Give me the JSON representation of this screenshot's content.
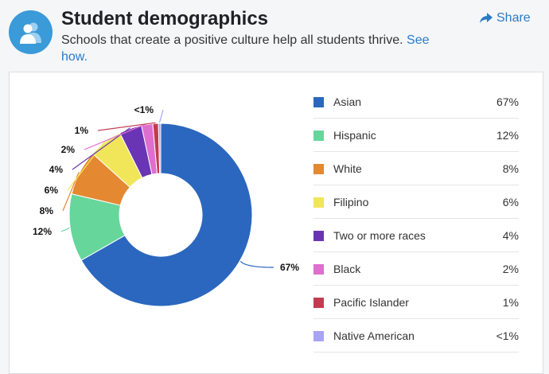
{
  "header": {
    "title": "Student demographics",
    "subtitle": "Schools that create a positive culture help all students thrive.",
    "link": "See how.",
    "share_label": "Share",
    "icon": "people-icon"
  },
  "chart_data": {
    "type": "pie",
    "donut": true,
    "legend_placement": "right",
    "categories": [
      "Asian",
      "Hispanic",
      "White",
      "Filipino",
      "Two or more races",
      "Black",
      "Pacific Islander",
      "Native American"
    ],
    "values": [
      67,
      12,
      8,
      6,
      4,
      2,
      1,
      0.4
    ],
    "value_labels": [
      "67%",
      "12%",
      "8%",
      "6%",
      "4%",
      "2%",
      "1%",
      "<1%"
    ],
    "colors": [
      "#2b67be",
      "#66d69b",
      "#e48832",
      "#f1e65a",
      "#6a35b5",
      "#de6fce",
      "#c33b51",
      "#a9a3f4"
    ]
  }
}
